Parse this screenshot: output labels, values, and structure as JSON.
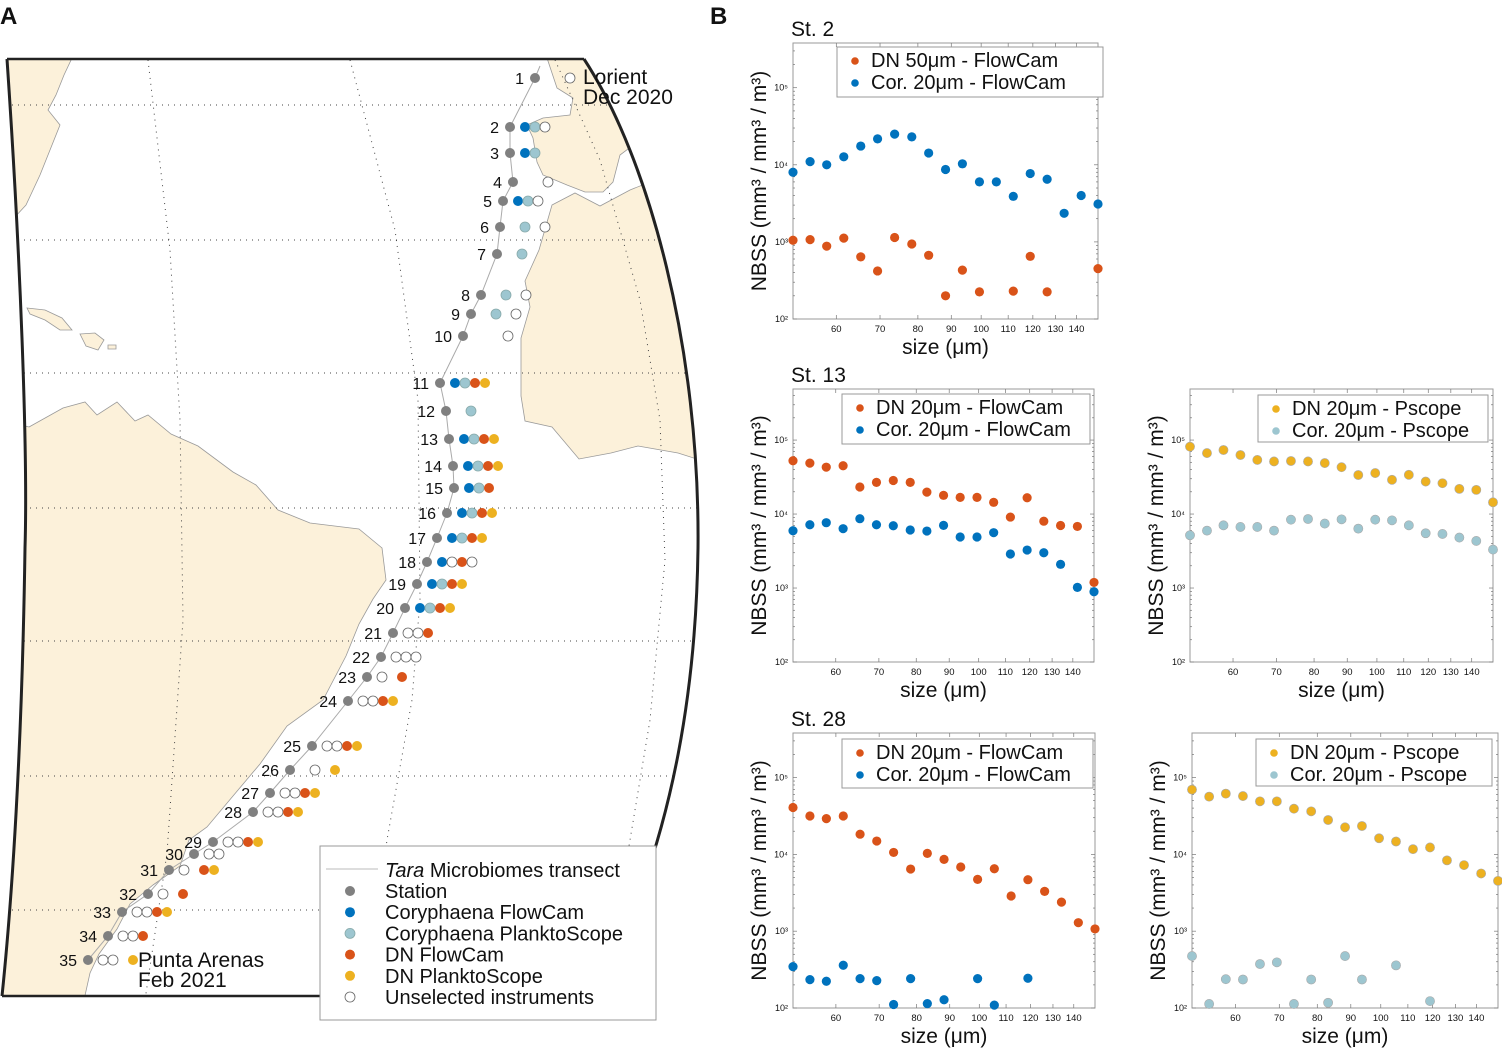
{
  "panels": {
    "a_label": "A",
    "b_label": "B"
  },
  "map": {
    "colors": {
      "land": "#FCF1DA",
      "coast": "#9a9a9a",
      "transect": "#aaaaaa",
      "station": "#808080"
    },
    "origin": {
      "name": "Lorient",
      "date": "Dec 2020"
    },
    "destination": {
      "name": "Punta Arenas",
      "date": "Feb 2021"
    },
    "instrument_order": [
      "Coryphaena FlowCam",
      "Coryphaena PlanktoScope",
      "DN FlowCam",
      "DN PlanktoScope"
    ],
    "instrument_colors": [
      "#0072BD",
      "#9DC6D0",
      "#D95319",
      "#EDB120"
    ],
    "unselected_color": "#ffffff",
    "legend": {
      "transect_italic": "Tara",
      "transect_rest": " Microbiomes transect",
      "items": [
        {
          "label": "Station",
          "color": "#808080"
        },
        {
          "label": "Coryphaena FlowCam",
          "color": "#0072BD"
        },
        {
          "label": "Coryphaena PlanktoScope",
          "color": "#9DC6D0"
        },
        {
          "label": "DN FlowCam",
          "color": "#D95319"
        },
        {
          "label": "DN PlanktoScope",
          "color": "#EDB120"
        },
        {
          "label": "Unselected instruments",
          "color": "#ffffff"
        }
      ]
    },
    "stations": [
      {
        "id": "1",
        "instruments": [
          "none",
          "none",
          "unselected",
          "none"
        ]
      },
      {
        "id": "2",
        "instruments": [
          "selected",
          "selected",
          "unselected",
          "none"
        ]
      },
      {
        "id": "3",
        "instruments": [
          "selected",
          "selected",
          "none",
          "none"
        ]
      },
      {
        "id": "4",
        "instruments": [
          "none",
          "none",
          "unselected",
          "none"
        ]
      },
      {
        "id": "5",
        "instruments": [
          "selected",
          "selected",
          "unselected",
          "none"
        ]
      },
      {
        "id": "6",
        "instruments": [
          "none",
          "selected",
          "none",
          "unselected"
        ]
      },
      {
        "id": "7",
        "instruments": [
          "none",
          "selected",
          "none",
          "none"
        ]
      },
      {
        "id": "8",
        "instruments": [
          "none",
          "selected",
          "none",
          "unselected"
        ]
      },
      {
        "id": "9",
        "instruments": [
          "none",
          "selected",
          "none",
          "unselected"
        ]
      },
      {
        "id": "10",
        "instruments": [
          "none",
          "none",
          "none",
          "unselected"
        ]
      },
      {
        "id": "11",
        "instruments": [
          "selected",
          "selected",
          "selected",
          "selected"
        ]
      },
      {
        "id": "12",
        "instruments": [
          "none",
          "selected",
          "none",
          "none"
        ]
      },
      {
        "id": "13",
        "instruments": [
          "selected",
          "selected",
          "selected",
          "selected"
        ]
      },
      {
        "id": "14",
        "instruments": [
          "selected",
          "selected",
          "selected",
          "selected"
        ]
      },
      {
        "id": "15",
        "instruments": [
          "selected",
          "selected",
          "selected",
          "none"
        ]
      },
      {
        "id": "16",
        "instruments": [
          "selected",
          "selected",
          "selected",
          "selected"
        ]
      },
      {
        "id": "17",
        "instruments": [
          "selected",
          "selected",
          "selected",
          "selected"
        ]
      },
      {
        "id": "18",
        "instruments": [
          "selected",
          "unselected",
          "selected",
          "unselected"
        ]
      },
      {
        "id": "19",
        "instruments": [
          "selected",
          "selected",
          "selected",
          "selected"
        ]
      },
      {
        "id": "20",
        "instruments": [
          "selected",
          "selected",
          "selected",
          "selected"
        ]
      },
      {
        "id": "21",
        "instruments": [
          "unselected",
          "unselected",
          "selected",
          "none"
        ]
      },
      {
        "id": "22",
        "instruments": [
          "unselected",
          "unselected",
          "unselected",
          "none"
        ]
      },
      {
        "id": "23",
        "instruments": [
          "unselected",
          "none",
          "selected",
          "none"
        ]
      },
      {
        "id": "24",
        "instruments": [
          "unselected",
          "unselected",
          "selected",
          "selected"
        ]
      },
      {
        "id": "25",
        "instruments": [
          "unselected",
          "unselected",
          "selected",
          "selected"
        ]
      },
      {
        "id": "26",
        "instruments": [
          "none",
          "unselected",
          "none",
          "selected"
        ]
      },
      {
        "id": "27",
        "instruments": [
          "unselected",
          "unselected",
          "selected",
          "selected"
        ]
      },
      {
        "id": "28",
        "instruments": [
          "unselected",
          "unselected",
          "selected",
          "selected"
        ]
      },
      {
        "id": "29",
        "instruments": [
          "unselected",
          "unselected",
          "selected",
          "selected"
        ]
      },
      {
        "id": "30",
        "instruments": [
          "unselected",
          "unselected",
          "none",
          "none"
        ]
      },
      {
        "id": "31",
        "instruments": [
          "unselected",
          "none",
          "selected",
          "selected"
        ]
      },
      {
        "id": "32",
        "instruments": [
          "unselected",
          "none",
          "selected",
          "none"
        ]
      },
      {
        "id": "33",
        "instruments": [
          "unselected",
          "unselected",
          "selected",
          "selected"
        ]
      },
      {
        "id": "34",
        "instruments": [
          "unselected",
          "unselected",
          "selected",
          "none"
        ]
      },
      {
        "id": "35",
        "instruments": [
          "unselected",
          "unselected",
          "none",
          "selected"
        ]
      }
    ]
  },
  "chart_data": [
    {
      "type": "scatter",
      "title": "St. 2",
      "xlabel": "size (μm)",
      "ylabel": "NBSS (mm³ / mm³ / m³)",
      "xscale": "log",
      "yscale": "log",
      "xlim": [
        51.5,
        151
      ],
      "ylim": [
        100,
        380000
      ],
      "xticks": [
        60,
        70,
        80,
        90,
        100,
        110,
        120,
        130,
        140
      ],
      "yticks": [
        100,
        1000,
        10000,
        100000
      ],
      "ytick_labels": [
        "10²",
        "10³",
        "10⁴",
        "10⁵"
      ],
      "legend": "top-right",
      "grid": false,
      "x": [
        51.5,
        54.7,
        58.0,
        61.6,
        65.4,
        69.4,
        73.7,
        78.3,
        83.1,
        88.2,
        93.6,
        99.4,
        105.5,
        112.0,
        118.9,
        126.2,
        134.0,
        142.3,
        151.0
      ],
      "series": [
        {
          "name": "DN 50μm - FlowCam",
          "color": "#D95319",
          "values": [
            1050,
            1070,
            880,
            1120,
            640,
            420,
            1140,
            940,
            670,
            200,
            430,
            225,
            null,
            230,
            650,
            225,
            null,
            null,
            450
          ]
        },
        {
          "name": "Cor. 20μm - FlowCam",
          "color": "#0072BD",
          "values": [
            8000,
            11000,
            10000,
            12700,
            17500,
            21700,
            25000,
            23000,
            14200,
            8700,
            10300,
            6000,
            6000,
            3900,
            7700,
            6500,
            2350,
            4000,
            3100
          ]
        }
      ]
    },
    {
      "type": "scatter",
      "title": "St. 13",
      "xlabel": "size (μm)",
      "ylabel": "NBSS (mm³ / mm³ / m³)",
      "xscale": "log",
      "yscale": "log",
      "xlim": [
        51.5,
        151
      ],
      "ylim": [
        100,
        490000
      ],
      "xticks": [
        60,
        70,
        80,
        90,
        100,
        110,
        120,
        130,
        140
      ],
      "yticks": [
        100,
        1000,
        10000,
        100000
      ],
      "ytick_labels": [
        "10²",
        "10³",
        "10⁴",
        "10⁵"
      ],
      "legend": "top-right",
      "grid": false,
      "x": [
        51.5,
        54.7,
        58.0,
        61.6,
        65.4,
        69.4,
        73.7,
        78.3,
        83.1,
        88.2,
        93.6,
        99.4,
        105.5,
        112.0,
        118.9,
        126.2,
        134.0,
        142.3,
        151.0
      ],
      "series": [
        {
          "name": "DN 20μm - FlowCam",
          "color": "#D95319",
          "values": [
            52500,
            48800,
            43000,
            45000,
            23200,
            26800,
            28400,
            26800,
            19800,
            17900,
            16800,
            16800,
            14400,
            9100,
            16600,
            8000,
            7000,
            6800,
            1190
          ]
        },
        {
          "name": "Cor. 20μm - FlowCam",
          "color": "#0072BD",
          "values": [
            5950,
            7170,
            7640,
            6340,
            8650,
            7170,
            6950,
            6080,
            5890,
            7030,
            4890,
            4890,
            5600,
            2880,
            3260,
            3000,
            2090,
            1020,
            890
          ]
        }
      ]
    },
    {
      "type": "scatter",
      "title": "",
      "xlabel": "size (μm)",
      "ylabel": "NBSS (mm³ / mm³ / m³)",
      "xscale": "log",
      "yscale": "log",
      "xlim": [
        51.5,
        151
      ],
      "ylim": [
        100,
        490000
      ],
      "xticks": [
        60,
        70,
        80,
        90,
        100,
        110,
        120,
        130,
        140
      ],
      "yticks": [
        100,
        1000,
        10000,
        100000
      ],
      "ytick_labels": [
        "10²",
        "10³",
        "10⁴",
        "10⁵"
      ],
      "legend": "top-right",
      "grid": false,
      "x": [
        51.5,
        54.7,
        58.0,
        61.6,
        65.4,
        69.4,
        73.7,
        78.3,
        83.1,
        88.2,
        93.6,
        99.4,
        105.5,
        112.0,
        118.9,
        126.2,
        134.0,
        142.3,
        151.0
      ],
      "series": [
        {
          "name": "DN 20μm - Pscope",
          "color": "#EDB120",
          "values": [
            81400,
            66700,
            73400,
            62800,
            53900,
            51400,
            52100,
            51400,
            48900,
            43000,
            33700,
            35800,
            29000,
            33900,
            27500,
            26100,
            21900,
            21200,
            14400
          ]
        },
        {
          "name": "Cor. 20μm - Pscope",
          "color": "#9DC6D0",
          "values": [
            5170,
            5970,
            7040,
            6690,
            6690,
            5970,
            8390,
            8570,
            7430,
            8480,
            6350,
            8390,
            8220,
            7040,
            5500,
            5380,
            4810,
            4330,
            3310
          ]
        }
      ]
    },
    {
      "type": "scatter",
      "title": "St. 28",
      "xlabel": "size (μm)",
      "ylabel": "NBSS (mm³ / mm³ / m³)",
      "xscale": "log",
      "yscale": "log",
      "xlim": [
        51.5,
        151
      ],
      "ylim": [
        100,
        380000
      ],
      "xticks": [
        60,
        70,
        80,
        90,
        100,
        110,
        120,
        130,
        140
      ],
      "yticks": [
        100,
        1000,
        10000,
        100000
      ],
      "ytick_labels": [
        "10²",
        "10³",
        "10⁴",
        "10⁵"
      ],
      "legend": "top-right",
      "grid": false,
      "x": [
        51.5,
        54.7,
        58.0,
        61.6,
        65.4,
        69.4,
        73.7,
        78.3,
        83.1,
        88.2,
        93.6,
        99.4,
        105.5,
        112.0,
        118.9,
        126.2,
        134.0,
        142.3,
        151.0
      ],
      "series": [
        {
          "name": "DN 20μm - FlowCam",
          "color": "#D95319",
          "values": [
            40700,
            31600,
            29200,
            31600,
            18300,
            14900,
            10600,
            6440,
            10300,
            8600,
            6840,
            4720,
            6500,
            2870,
            4680,
            3300,
            2390,
            1290,
            1070
          ]
        },
        {
          "name": "Cor. 20μm - FlowCam",
          "color": "#0072BD",
          "values": [
            346,
            234,
            223,
            360,
            241,
            227,
            111,
            241,
            114,
            128,
            null,
            241,
            109,
            null,
            244,
            null,
            null,
            null,
            null
          ]
        }
      ]
    },
    {
      "type": "scatter",
      "title": "",
      "xlabel": "size (μm)",
      "ylabel": "NBSS (mm³ / mm³ / m³)",
      "xscale": "log",
      "yscale": "log",
      "xlim": [
        51.5,
        151
      ],
      "ylim": [
        100,
        380000
      ],
      "xticks": [
        60,
        70,
        80,
        90,
        100,
        110,
        120,
        130,
        140
      ],
      "yticks": [
        100,
        1000,
        10000,
        100000
      ],
      "ytick_labels": [
        "10²",
        "10³",
        "10⁴",
        "10⁵"
      ],
      "legend": "top-right",
      "grid": false,
      "x": [
        51.5,
        54.7,
        58.0,
        61.6,
        65.4,
        69.4,
        73.7,
        78.3,
        83.1,
        88.2,
        93.6,
        99.4,
        105.5,
        112.0,
        118.9,
        126.2,
        134.0,
        142.3,
        151.0
      ],
      "series": [
        {
          "name": "DN 20μm - Pscope",
          "color": "#EDB120",
          "values": [
            69600,
            56400,
            61700,
            57400,
            49000,
            49000,
            39300,
            36300,
            28000,
            22500,
            23400,
            16200,
            14700,
            11700,
            12300,
            8350,
            7250,
            5640,
            4520
          ]
        },
        {
          "name": "Cor. 20μm - Pscope",
          "color": "#9DC6D0",
          "values": [
            474,
            113,
            237,
            235,
            374,
            393,
            113,
            235,
            117,
            474,
            235,
            null,
            359,
            null,
            123,
            null,
            null,
            null,
            null
          ]
        }
      ]
    }
  ]
}
